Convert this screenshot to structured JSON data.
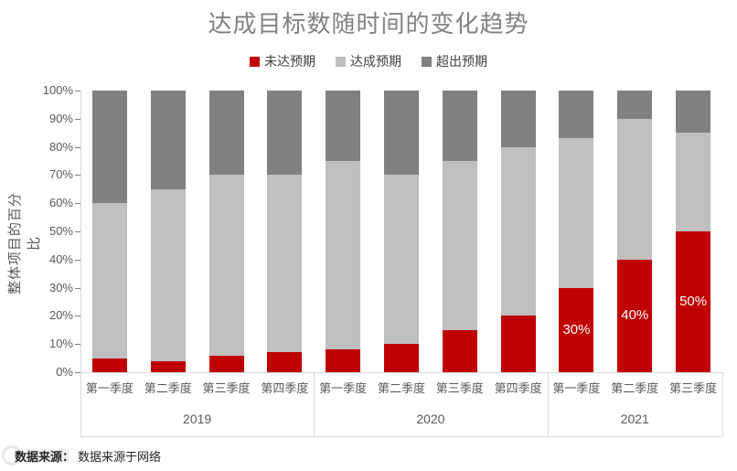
{
  "chart_data": {
    "type": "bar",
    "stacked": true,
    "percent": true,
    "title": "达成目标数随时间的变化趋势",
    "ylabel": "整体项目的百分比",
    "categories": [
      "第一季度",
      "第二季度",
      "第三季度",
      "第四季度",
      "第一季度",
      "第二季度",
      "第三季度",
      "第四季度",
      "第一季度",
      "第二季度",
      "第三季度"
    ],
    "groups": [
      {
        "label": "2019",
        "span": 4
      },
      {
        "label": "2020",
        "span": 4
      },
      {
        "label": "2021",
        "span": 3
      }
    ],
    "series": [
      {
        "name": "未达预期",
        "color": "#C00000",
        "values": [
          5,
          4,
          6,
          7,
          8,
          10,
          15,
          20,
          30,
          40,
          50
        ]
      },
      {
        "name": "达成预期",
        "color": "#BFBFBF",
        "values": [
          55,
          61,
          64,
          63,
          67,
          60,
          60,
          60,
          53,
          50,
          35
        ]
      },
      {
        "name": "超出预期",
        "color": "#808080",
        "values": [
          40,
          35,
          30,
          30,
          25,
          30,
          25,
          20,
          17,
          10,
          15
        ]
      }
    ],
    "bar_labels": [
      "",
      "",
      "",
      "",
      "",
      "",
      "",
      "",
      "30%",
      "40%",
      "50%"
    ],
    "yticks": [
      "0%",
      "10%",
      "20%",
      "30%",
      "40%",
      "50%",
      "60%",
      "70%",
      "80%",
      "90%",
      "100%"
    ],
    "ylim": [
      0,
      100
    ],
    "legend_position": "top",
    "grid": false,
    "title_color": "#828282",
    "axis_label_color": "#595959",
    "bar_label_color": "#FFFFFF"
  },
  "source": {
    "prefix": "数据来源：",
    "text": "数据来源于网络"
  },
  "watermark": {
    "visible": true
  }
}
